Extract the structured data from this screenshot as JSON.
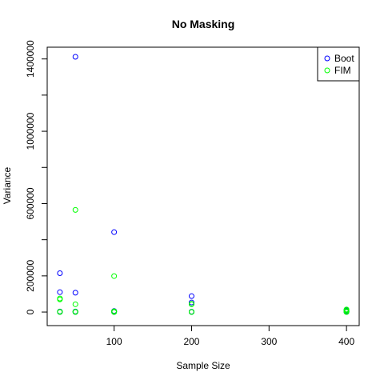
{
  "chart_data": {
    "type": "scatter",
    "title": "No Masking",
    "xlabel": "Sample Size",
    "ylabel": "Variance",
    "xlim": [
      13.6,
      416.4
    ],
    "ylim": [
      -75000,
      1465000
    ],
    "x_ticks": [
      100,
      200,
      300,
      400
    ],
    "x_tick_labels": [
      "100",
      "200",
      "300",
      "400"
    ],
    "y_ticks": [
      0,
      200000,
      600000,
      1000000,
      1400000
    ],
    "y_tick_labels": [
      "0",
      "200000",
      "600000",
      "1000000",
      "1400000"
    ],
    "y_unlabeled_ticks": [
      400000,
      800000,
      1200000
    ],
    "grid": false,
    "legend_position": "top-right",
    "series": [
      {
        "name": "Boot",
        "color": "#0000FF",
        "marker": "open-circle",
        "points": [
          [
            30,
            215000
          ],
          [
            30,
            110000
          ],
          [
            30,
            3000
          ],
          [
            30,
            0
          ],
          [
            50,
            1412000
          ],
          [
            50,
            107000
          ],
          [
            50,
            3000
          ],
          [
            50,
            0
          ],
          [
            100,
            442000
          ],
          [
            100,
            6000
          ],
          [
            100,
            2000
          ],
          [
            100,
            0
          ],
          [
            200,
            88000
          ],
          [
            200,
            53000
          ],
          [
            200,
            2000
          ],
          [
            200,
            0
          ],
          [
            400,
            12000
          ],
          [
            400,
            6000
          ],
          [
            400,
            2000
          ],
          [
            400,
            0
          ]
        ]
      },
      {
        "name": "FIM",
        "color": "#00FF00",
        "marker": "open-circle",
        "points": [
          [
            30,
            75000
          ],
          [
            30,
            70000
          ],
          [
            30,
            2000
          ],
          [
            30,
            0
          ],
          [
            50,
            565000
          ],
          [
            50,
            43000
          ],
          [
            50,
            2000
          ],
          [
            50,
            0
          ],
          [
            100,
            199000
          ],
          [
            100,
            4000
          ],
          [
            100,
            1000
          ],
          [
            100,
            0
          ],
          [
            200,
            45000
          ],
          [
            200,
            43000
          ],
          [
            200,
            1000
          ],
          [
            200,
            0
          ],
          [
            400,
            14000
          ],
          [
            400,
            9000
          ],
          [
            400,
            3000
          ],
          [
            400,
            0
          ]
        ]
      }
    ]
  }
}
